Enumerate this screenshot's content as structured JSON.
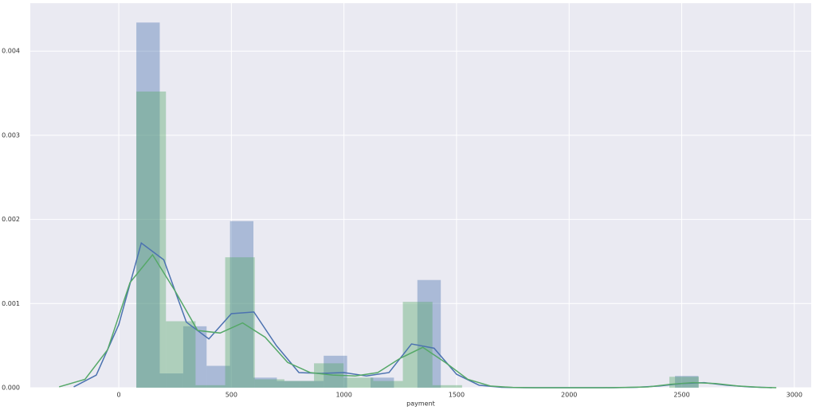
{
  "chart_data": {
    "type": "histogram",
    "xlabel": "payment",
    "xlim": [
      -393,
      3075
    ],
    "ylim": [
      0,
      0.00457
    ],
    "xticks": [
      0,
      500,
      1000,
      1500,
      2000,
      2500,
      3000
    ],
    "yticks": [
      {
        "value": 0,
        "label": "0.000"
      },
      {
        "value": 0.001,
        "label": "0.001"
      },
      {
        "value": 0.002,
        "label": "0.002"
      },
      {
        "value": 0.003,
        "label": "0.003"
      },
      {
        "value": 0.004,
        "label": "0.004"
      }
    ],
    "grid": true,
    "series": [
      {
        "color": "#4c72b0",
        "bins": [
          78,
          182,
          286,
          390,
          494,
          598,
          702,
          806,
          910,
          1014,
          1118,
          1222,
          1326,
          1430,
          1534,
          1638,
          1742,
          1846,
          1950,
          2054,
          2158,
          2262,
          2366,
          2470,
          2574
        ],
        "values": [
          0.00434,
          0.00017,
          0.00073,
          0.00026,
          0.00198,
          0.00012,
          8e-05,
          8e-05,
          0.00038,
          0,
          0.00012,
          0,
          0.00128,
          0,
          0,
          0,
          0,
          0,
          0,
          0,
          0,
          0,
          0,
          0.00014
        ],
        "kde": {
          "x": [
            -200,
            -100,
            0,
            100,
            200,
            300,
            400,
            500,
            600,
            700,
            800,
            900,
            1000,
            1100,
            1200,
            1300,
            1400,
            1500,
            1600,
            1700,
            1800,
            1900,
            2000,
            2100,
            2200,
            2300,
            2400,
            2500,
            2600,
            2700,
            2800,
            2900
          ],
          "values": [
            1e-05,
            0.00015,
            0.00075,
            0.00172,
            0.00152,
            0.00078,
            0.00058,
            0.00088,
            0.0009,
            0.0005,
            0.00018,
            0.00017,
            0.00018,
            0.00014,
            0.00018,
            0.00052,
            0.00047,
            0.00016,
            3e-05,
            5e-06,
            0,
            0,
            0,
            0,
            0,
            5e-06,
            2e-05,
            5e-05,
            6e-05,
            3e-05,
            1e-05,
            0
          ]
        }
      },
      {
        "color": "#55a868",
        "bins": [
          78,
          209.5,
          341,
          472.5,
          604,
          735.5,
          867,
          998.5,
          1130,
          1261.5,
          1393,
          1524.5,
          1656,
          1787.5,
          1919,
          2050.5,
          2182,
          2313.5,
          2445,
          2576
        ],
        "values": [
          0.00352,
          0.00079,
          3e-05,
          0.00155,
          0.0001,
          8e-05,
          0.00029,
          0.00012,
          8e-05,
          0.00102,
          3e-05,
          0,
          0,
          0,
          0,
          0,
          0,
          0,
          0.00013
        ],
        "kde": {
          "x": [
            -265,
            -150,
            -50,
            50,
            150,
            250,
            350,
            450,
            550,
            650,
            750,
            850,
            950,
            1050,
            1150,
            1250,
            1350,
            1450,
            1550,
            1650,
            1750,
            1850,
            1950,
            2050,
            2150,
            2250,
            2350,
            2450,
            2550,
            2650,
            2750,
            2850,
            2920
          ],
          "values": [
            1e-05,
            0.0001,
            0.00045,
            0.00125,
            0.00158,
            0.00115,
            0.00068,
            0.00065,
            0.00077,
            0.0006,
            0.0003,
            0.00018,
            0.00015,
            0.00014,
            0.00018,
            0.00035,
            0.00048,
            0.0003,
            0.0001,
            2e-05,
            3e-06,
            0,
            0,
            0,
            0,
            3e-06,
            1e-05,
            4e-05,
            6e-05,
            5e-05,
            2e-05,
            5e-06,
            0
          ]
        }
      }
    ]
  }
}
